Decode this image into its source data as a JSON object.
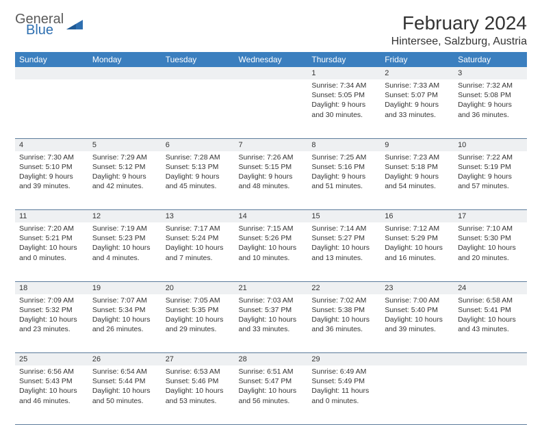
{
  "logo": {
    "general": "General",
    "blue": "Blue"
  },
  "title": "February 2024",
  "location": "Hintersee, Salzburg, Austria",
  "colors": {
    "header_bg": "#3b7fbf",
    "header_text": "#ffffff",
    "daynum_bg": "#eef0f2",
    "border": "#5a7a9a",
    "logo_gray": "#5a5a5a",
    "logo_blue": "#2e6fb0"
  },
  "weekdays": [
    "Sunday",
    "Monday",
    "Tuesday",
    "Wednesday",
    "Thursday",
    "Friday",
    "Saturday"
  ],
  "weeks": [
    [
      null,
      null,
      null,
      null,
      {
        "n": "1",
        "sr": "Sunrise: 7:34 AM",
        "ss": "Sunset: 5:05 PM",
        "dl": "Daylight: 9 hours and 30 minutes."
      },
      {
        "n": "2",
        "sr": "Sunrise: 7:33 AM",
        "ss": "Sunset: 5:07 PM",
        "dl": "Daylight: 9 hours and 33 minutes."
      },
      {
        "n": "3",
        "sr": "Sunrise: 7:32 AM",
        "ss": "Sunset: 5:08 PM",
        "dl": "Daylight: 9 hours and 36 minutes."
      }
    ],
    [
      {
        "n": "4",
        "sr": "Sunrise: 7:30 AM",
        "ss": "Sunset: 5:10 PM",
        "dl": "Daylight: 9 hours and 39 minutes."
      },
      {
        "n": "5",
        "sr": "Sunrise: 7:29 AM",
        "ss": "Sunset: 5:12 PM",
        "dl": "Daylight: 9 hours and 42 minutes."
      },
      {
        "n": "6",
        "sr": "Sunrise: 7:28 AM",
        "ss": "Sunset: 5:13 PM",
        "dl": "Daylight: 9 hours and 45 minutes."
      },
      {
        "n": "7",
        "sr": "Sunrise: 7:26 AM",
        "ss": "Sunset: 5:15 PM",
        "dl": "Daylight: 9 hours and 48 minutes."
      },
      {
        "n": "8",
        "sr": "Sunrise: 7:25 AM",
        "ss": "Sunset: 5:16 PM",
        "dl": "Daylight: 9 hours and 51 minutes."
      },
      {
        "n": "9",
        "sr": "Sunrise: 7:23 AM",
        "ss": "Sunset: 5:18 PM",
        "dl": "Daylight: 9 hours and 54 minutes."
      },
      {
        "n": "10",
        "sr": "Sunrise: 7:22 AM",
        "ss": "Sunset: 5:19 PM",
        "dl": "Daylight: 9 hours and 57 minutes."
      }
    ],
    [
      {
        "n": "11",
        "sr": "Sunrise: 7:20 AM",
        "ss": "Sunset: 5:21 PM",
        "dl": "Daylight: 10 hours and 0 minutes."
      },
      {
        "n": "12",
        "sr": "Sunrise: 7:19 AM",
        "ss": "Sunset: 5:23 PM",
        "dl": "Daylight: 10 hours and 4 minutes."
      },
      {
        "n": "13",
        "sr": "Sunrise: 7:17 AM",
        "ss": "Sunset: 5:24 PM",
        "dl": "Daylight: 10 hours and 7 minutes."
      },
      {
        "n": "14",
        "sr": "Sunrise: 7:15 AM",
        "ss": "Sunset: 5:26 PM",
        "dl": "Daylight: 10 hours and 10 minutes."
      },
      {
        "n": "15",
        "sr": "Sunrise: 7:14 AM",
        "ss": "Sunset: 5:27 PM",
        "dl": "Daylight: 10 hours and 13 minutes."
      },
      {
        "n": "16",
        "sr": "Sunrise: 7:12 AM",
        "ss": "Sunset: 5:29 PM",
        "dl": "Daylight: 10 hours and 16 minutes."
      },
      {
        "n": "17",
        "sr": "Sunrise: 7:10 AM",
        "ss": "Sunset: 5:30 PM",
        "dl": "Daylight: 10 hours and 20 minutes."
      }
    ],
    [
      {
        "n": "18",
        "sr": "Sunrise: 7:09 AM",
        "ss": "Sunset: 5:32 PM",
        "dl": "Daylight: 10 hours and 23 minutes."
      },
      {
        "n": "19",
        "sr": "Sunrise: 7:07 AM",
        "ss": "Sunset: 5:34 PM",
        "dl": "Daylight: 10 hours and 26 minutes."
      },
      {
        "n": "20",
        "sr": "Sunrise: 7:05 AM",
        "ss": "Sunset: 5:35 PM",
        "dl": "Daylight: 10 hours and 29 minutes."
      },
      {
        "n": "21",
        "sr": "Sunrise: 7:03 AM",
        "ss": "Sunset: 5:37 PM",
        "dl": "Daylight: 10 hours and 33 minutes."
      },
      {
        "n": "22",
        "sr": "Sunrise: 7:02 AM",
        "ss": "Sunset: 5:38 PM",
        "dl": "Daylight: 10 hours and 36 minutes."
      },
      {
        "n": "23",
        "sr": "Sunrise: 7:00 AM",
        "ss": "Sunset: 5:40 PM",
        "dl": "Daylight: 10 hours and 39 minutes."
      },
      {
        "n": "24",
        "sr": "Sunrise: 6:58 AM",
        "ss": "Sunset: 5:41 PM",
        "dl": "Daylight: 10 hours and 43 minutes."
      }
    ],
    [
      {
        "n": "25",
        "sr": "Sunrise: 6:56 AM",
        "ss": "Sunset: 5:43 PM",
        "dl": "Daylight: 10 hours and 46 minutes."
      },
      {
        "n": "26",
        "sr": "Sunrise: 6:54 AM",
        "ss": "Sunset: 5:44 PM",
        "dl": "Daylight: 10 hours and 50 minutes."
      },
      {
        "n": "27",
        "sr": "Sunrise: 6:53 AM",
        "ss": "Sunset: 5:46 PM",
        "dl": "Daylight: 10 hours and 53 minutes."
      },
      {
        "n": "28",
        "sr": "Sunrise: 6:51 AM",
        "ss": "Sunset: 5:47 PM",
        "dl": "Daylight: 10 hours and 56 minutes."
      },
      {
        "n": "29",
        "sr": "Sunrise: 6:49 AM",
        "ss": "Sunset: 5:49 PM",
        "dl": "Daylight: 11 hours and 0 minutes."
      },
      null,
      null
    ]
  ]
}
